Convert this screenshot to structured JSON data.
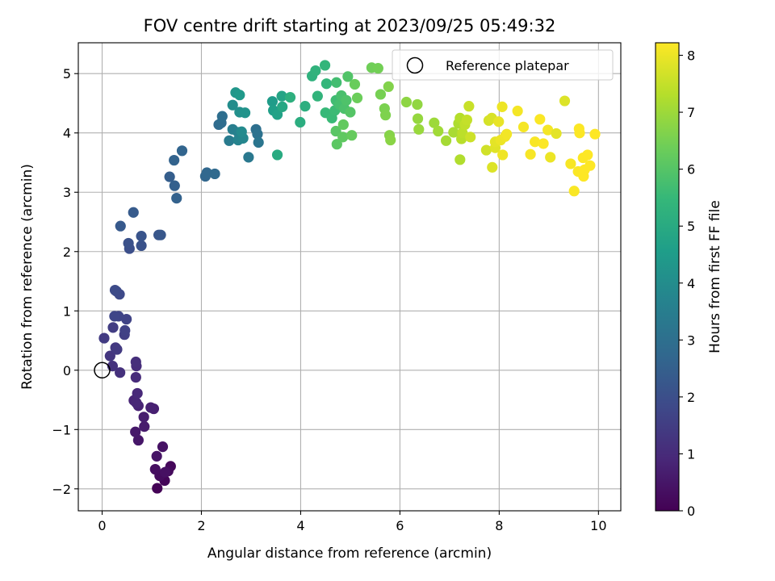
{
  "chart_data": {
    "type": "scatter",
    "title": "FOV centre drift starting at 2023/09/25 05:49:32",
    "xlabel": "Angular distance from reference (arcmin)",
    "ylabel": "Rotation from reference (arcmin)",
    "xlim": [
      -0.48,
      10.45
    ],
    "ylim": [
      -2.37,
      5.52
    ],
    "xticks": [
      0,
      2,
      4,
      6,
      8,
      10
    ],
    "xtick_labels": [
      "0",
      "2",
      "4",
      "6",
      "8",
      "10"
    ],
    "yticks": [
      -2,
      -1,
      0,
      1,
      2,
      3,
      4,
      5
    ],
    "ytick_labels": [
      "−2",
      "−1",
      "0",
      "1",
      "2",
      "3",
      "4",
      "5"
    ],
    "grid": true,
    "legend": {
      "position": "top-right",
      "entries": [
        "Reference platepar"
      ]
    },
    "reference_point": {
      "x": 0,
      "y": 0,
      "label": "Reference platepar"
    },
    "colorbar": {
      "label": "Hours from first FF file",
      "range": [
        0,
        8.22
      ],
      "ticks": [
        0,
        1,
        2,
        3,
        4,
        5,
        6,
        7,
        8
      ],
      "tick_labels": [
        "0",
        "1",
        "2",
        "3",
        "4",
        "5",
        "6",
        "7",
        "8"
      ],
      "colormap": "viridis",
      "colors": [
        "#440154",
        "#482878",
        "#3e4989",
        "#31688e",
        "#26828e",
        "#1f9e89",
        "#35b779",
        "#6ece58",
        "#b5de2b",
        "#fde725"
      ]
    },
    "points": [
      {
        "x": 1.11,
        "y": -1.99,
        "t": 0.05
      },
      {
        "x": 1.26,
        "y": -1.86,
        "t": 0.1
      },
      {
        "x": 1.38,
        "y": -1.62,
        "t": 0.15
      },
      {
        "x": 1.33,
        "y": -1.7,
        "t": 0.2
      },
      {
        "x": 1.16,
        "y": -1.78,
        "t": 0.25
      },
      {
        "x": 1.07,
        "y": -1.67,
        "t": 0.3
      },
      {
        "x": 1.27,
        "y": -1.72,
        "t": 0.35
      },
      {
        "x": 1.22,
        "y": -1.29,
        "t": 0.4
      },
      {
        "x": 1.1,
        "y": -1.45,
        "t": 0.45
      },
      {
        "x": 0.73,
        "y": -1.18,
        "t": 0.5
      },
      {
        "x": 0.67,
        "y": -1.04,
        "t": 0.55
      },
      {
        "x": 0.85,
        "y": -0.95,
        "t": 0.6
      },
      {
        "x": 0.84,
        "y": -0.79,
        "t": 0.65
      },
      {
        "x": 1.04,
        "y": -0.65,
        "t": 0.7
      },
      {
        "x": 0.98,
        "y": -0.63,
        "t": 0.75
      },
      {
        "x": 0.73,
        "y": -0.6,
        "t": 0.8
      },
      {
        "x": 0.64,
        "y": -0.51,
        "t": 0.85
      },
      {
        "x": 0.69,
        "y": -0.55,
        "t": 0.9
      },
      {
        "x": 0.71,
        "y": -0.39,
        "t": 0.95
      },
      {
        "x": 0.68,
        "y": -0.12,
        "t": 1.0
      },
      {
        "x": 0.69,
        "y": 0.07,
        "t": 1.05
      },
      {
        "x": 0.68,
        "y": 0.14,
        "t": 1.1
      },
      {
        "x": 0.36,
        "y": -0.04,
        "t": 1.15
      },
      {
        "x": 0.21,
        "y": 0.07,
        "t": 1.2
      },
      {
        "x": 0.16,
        "y": 0.24,
        "t": 1.3
      },
      {
        "x": 0.27,
        "y": 0.38,
        "t": 1.35
      },
      {
        "x": 0.3,
        "y": 0.35,
        "t": 1.4
      },
      {
        "x": 0.04,
        "y": 0.54,
        "t": 1.45
      },
      {
        "x": 0.22,
        "y": 0.72,
        "t": 1.5
      },
      {
        "x": 0.45,
        "y": 0.6,
        "t": 1.55
      },
      {
        "x": 0.46,
        "y": 0.67,
        "t": 1.6
      },
      {
        "x": 0.49,
        "y": 0.86,
        "t": 1.65
      },
      {
        "x": 0.33,
        "y": 0.91,
        "t": 1.7
      },
      {
        "x": 0.25,
        "y": 0.91,
        "t": 1.75
      },
      {
        "x": 0.29,
        "y": 1.33,
        "t": 1.8
      },
      {
        "x": 0.35,
        "y": 1.28,
        "t": 1.85
      },
      {
        "x": 0.26,
        "y": 1.35,
        "t": 1.9
      },
      {
        "x": 0.55,
        "y": 2.05,
        "t": 2.0
      },
      {
        "x": 0.53,
        "y": 2.14,
        "t": 2.05
      },
      {
        "x": 0.79,
        "y": 2.1,
        "t": 2.1
      },
      {
        "x": 0.79,
        "y": 2.26,
        "t": 2.15
      },
      {
        "x": 1.14,
        "y": 2.28,
        "t": 2.2
      },
      {
        "x": 1.18,
        "y": 2.28,
        "t": 2.25
      },
      {
        "x": 0.37,
        "y": 2.43,
        "t": 2.3
      },
      {
        "x": 0.63,
        "y": 2.66,
        "t": 2.35
      },
      {
        "x": 1.36,
        "y": 3.26,
        "t": 2.45
      },
      {
        "x": 1.46,
        "y": 3.11,
        "t": 2.5
      },
      {
        "x": 1.5,
        "y": 2.9,
        "t": 2.55
      },
      {
        "x": 1.45,
        "y": 3.54,
        "t": 2.6
      },
      {
        "x": 1.61,
        "y": 3.7,
        "t": 2.65
      },
      {
        "x": 2.08,
        "y": 3.27,
        "t": 2.7
      },
      {
        "x": 2.11,
        "y": 3.33,
        "t": 2.75
      },
      {
        "x": 2.27,
        "y": 3.31,
        "t": 2.8
      },
      {
        "x": 2.35,
        "y": 4.14,
        "t": 2.85
      },
      {
        "x": 2.4,
        "y": 4.17,
        "t": 2.9
      },
      {
        "x": 2.42,
        "y": 4.28,
        "t": 2.95
      },
      {
        "x": 3.1,
        "y": 4.06,
        "t": 3.0
      },
      {
        "x": 3.13,
        "y": 3.98,
        "t": 3.1
      },
      {
        "x": 3.15,
        "y": 3.84,
        "t": 3.2
      },
      {
        "x": 2.95,
        "y": 3.59,
        "t": 3.3
      },
      {
        "x": 2.56,
        "y": 3.87,
        "t": 3.4
      },
      {
        "x": 2.63,
        "y": 4.06,
        "t": 3.5
      },
      {
        "x": 2.74,
        "y": 4.01,
        "t": 3.6
      },
      {
        "x": 2.74,
        "y": 3.88,
        "t": 3.7
      },
      {
        "x": 2.84,
        "y": 3.91,
        "t": 3.8
      },
      {
        "x": 2.81,
        "y": 4.02,
        "t": 3.9
      },
      {
        "x": 2.63,
        "y": 4.47,
        "t": 4.0
      },
      {
        "x": 2.77,
        "y": 4.35,
        "t": 4.1
      },
      {
        "x": 2.88,
        "y": 4.34,
        "t": 4.2
      },
      {
        "x": 2.69,
        "y": 4.68,
        "t": 4.3
      },
      {
        "x": 2.77,
        "y": 4.64,
        "t": 4.4
      },
      {
        "x": 3.43,
        "y": 4.53,
        "t": 4.5
      },
      {
        "x": 3.45,
        "y": 4.38,
        "t": 4.6
      },
      {
        "x": 3.53,
        "y": 4.31,
        "t": 4.7
      },
      {
        "x": 3.62,
        "y": 4.62,
        "t": 4.8
      },
      {
        "x": 3.63,
        "y": 4.44,
        "t": 4.9
      },
      {
        "x": 3.53,
        "y": 3.63,
        "t": 5.0
      },
      {
        "x": 3.99,
        "y": 4.18,
        "t": 5.1
      },
      {
        "x": 4.09,
        "y": 4.45,
        "t": 5.15
      },
      {
        "x": 3.79,
        "y": 4.6,
        "t": 5.2
      },
      {
        "x": 4.23,
        "y": 4.96,
        "t": 5.25
      },
      {
        "x": 4.3,
        "y": 5.05,
        "t": 5.3
      },
      {
        "x": 4.34,
        "y": 4.62,
        "t": 5.35
      },
      {
        "x": 4.49,
        "y": 5.14,
        "t": 5.4
      },
      {
        "x": 4.52,
        "y": 4.83,
        "t": 5.45
      },
      {
        "x": 4.5,
        "y": 4.34,
        "t": 5.5
      },
      {
        "x": 4.63,
        "y": 4.25,
        "t": 5.55
      },
      {
        "x": 4.69,
        "y": 4.38,
        "t": 5.6
      },
      {
        "x": 4.71,
        "y": 4.55,
        "t": 5.65
      },
      {
        "x": 4.72,
        "y": 4.85,
        "t": 5.7
      },
      {
        "x": 4.78,
        "y": 4.48,
        "t": 5.75
      },
      {
        "x": 4.82,
        "y": 4.63,
        "t": 5.8
      },
      {
        "x": 4.88,
        "y": 4.41,
        "t": 5.85
      },
      {
        "x": 4.92,
        "y": 4.55,
        "t": 5.9
      },
      {
        "x": 4.95,
        "y": 4.95,
        "t": 5.95
      },
      {
        "x": 5.0,
        "y": 4.35,
        "t": 6.0
      },
      {
        "x": 4.71,
        "y": 4.03,
        "t": 6.05
      },
      {
        "x": 4.73,
        "y": 3.81,
        "t": 6.1
      },
      {
        "x": 4.85,
        "y": 3.93,
        "t": 6.15
      },
      {
        "x": 4.86,
        "y": 4.14,
        "t": 6.2
      },
      {
        "x": 5.03,
        "y": 3.96,
        "t": 6.25
      },
      {
        "x": 5.09,
        "y": 4.82,
        "t": 6.3
      },
      {
        "x": 5.14,
        "y": 4.59,
        "t": 6.35
      },
      {
        "x": 5.43,
        "y": 5.1,
        "t": 6.4
      },
      {
        "x": 5.56,
        "y": 5.09,
        "t": 6.45
      },
      {
        "x": 5.61,
        "y": 4.65,
        "t": 6.5
      },
      {
        "x": 5.69,
        "y": 4.41,
        "t": 6.55
      },
      {
        "x": 5.71,
        "y": 4.3,
        "t": 6.6
      },
      {
        "x": 5.77,
        "y": 4.78,
        "t": 6.65
      },
      {
        "x": 5.79,
        "y": 3.96,
        "t": 6.7
      },
      {
        "x": 5.81,
        "y": 3.88,
        "t": 6.75
      },
      {
        "x": 6.13,
        "y": 4.52,
        "t": 6.8
      },
      {
        "x": 6.35,
        "y": 4.48,
        "t": 6.85
      },
      {
        "x": 6.36,
        "y": 4.24,
        "t": 6.9
      },
      {
        "x": 6.38,
        "y": 4.06,
        "t": 6.95
      },
      {
        "x": 6.69,
        "y": 4.17,
        "t": 7.0
      },
      {
        "x": 6.77,
        "y": 4.03,
        "t": 7.05
      },
      {
        "x": 6.93,
        "y": 3.87,
        "t": 7.1
      },
      {
        "x": 7.08,
        "y": 4.01,
        "t": 7.15
      },
      {
        "x": 7.18,
        "y": 4.16,
        "t": 7.2
      },
      {
        "x": 7.21,
        "y": 3.55,
        "t": 7.25
      },
      {
        "x": 7.21,
        "y": 4.25,
        "t": 7.3
      },
      {
        "x": 7.24,
        "y": 3.9,
        "t": 7.35
      },
      {
        "x": 7.26,
        "y": 4.0,
        "t": 7.4
      },
      {
        "x": 7.31,
        "y": 4.14,
        "t": 7.45
      },
      {
        "x": 7.35,
        "y": 4.22,
        "t": 7.5
      },
      {
        "x": 7.39,
        "y": 4.45,
        "t": 7.55
      },
      {
        "x": 7.42,
        "y": 3.93,
        "t": 7.6
      },
      {
        "x": 7.74,
        "y": 3.71,
        "t": 7.65
      },
      {
        "x": 7.79,
        "y": 4.21,
        "t": 7.7
      },
      {
        "x": 7.85,
        "y": 4.25,
        "t": 7.75
      },
      {
        "x": 7.86,
        "y": 3.42,
        "t": 7.8
      },
      {
        "x": 7.92,
        "y": 3.75,
        "t": 7.85
      },
      {
        "x": 7.92,
        "y": 3.85,
        "t": 7.9
      },
      {
        "x": 7.99,
        "y": 4.19,
        "t": 7.95
      },
      {
        "x": 8.03,
        "y": 3.88,
        "t": 8.0
      },
      {
        "x": 8.06,
        "y": 4.44,
        "t": 8.02
      },
      {
        "x": 8.07,
        "y": 3.63,
        "t": 8.04
      },
      {
        "x": 8.12,
        "y": 3.94,
        "t": 8.06
      },
      {
        "x": 8.15,
        "y": 3.98,
        "t": 8.08
      },
      {
        "x": 8.37,
        "y": 4.37,
        "t": 8.1
      },
      {
        "x": 8.49,
        "y": 4.1,
        "t": 8.12
      },
      {
        "x": 8.63,
        "y": 3.64,
        "t": 8.14
      },
      {
        "x": 8.72,
        "y": 3.85,
        "t": 8.16
      },
      {
        "x": 8.82,
        "y": 4.23,
        "t": 8.18
      },
      {
        "x": 8.89,
        "y": 3.82,
        "t": 8.2
      },
      {
        "x": 8.98,
        "y": 4.05,
        "t": 8.1
      },
      {
        "x": 9.03,
        "y": 3.59,
        "t": 8.0
      },
      {
        "x": 9.15,
        "y": 3.99,
        "t": 7.9
      },
      {
        "x": 9.32,
        "y": 4.54,
        "t": 7.8
      },
      {
        "x": 9.44,
        "y": 3.48,
        "t": 8.15
      },
      {
        "x": 9.51,
        "y": 3.02,
        "t": 8.17
      },
      {
        "x": 9.59,
        "y": 3.35,
        "t": 8.19
      },
      {
        "x": 9.61,
        "y": 4.07,
        "t": 8.2
      },
      {
        "x": 9.62,
        "y": 4.0,
        "t": 8.21
      },
      {
        "x": 9.69,
        "y": 3.58,
        "t": 8.21
      },
      {
        "x": 9.7,
        "y": 3.27,
        "t": 8.22
      },
      {
        "x": 9.72,
        "y": 3.38,
        "t": 8.22
      },
      {
        "x": 9.78,
        "y": 3.63,
        "t": 8.22
      },
      {
        "x": 9.83,
        "y": 3.45,
        "t": 8.22
      },
      {
        "x": 9.93,
        "y": 3.98,
        "t": 8.22
      }
    ]
  }
}
